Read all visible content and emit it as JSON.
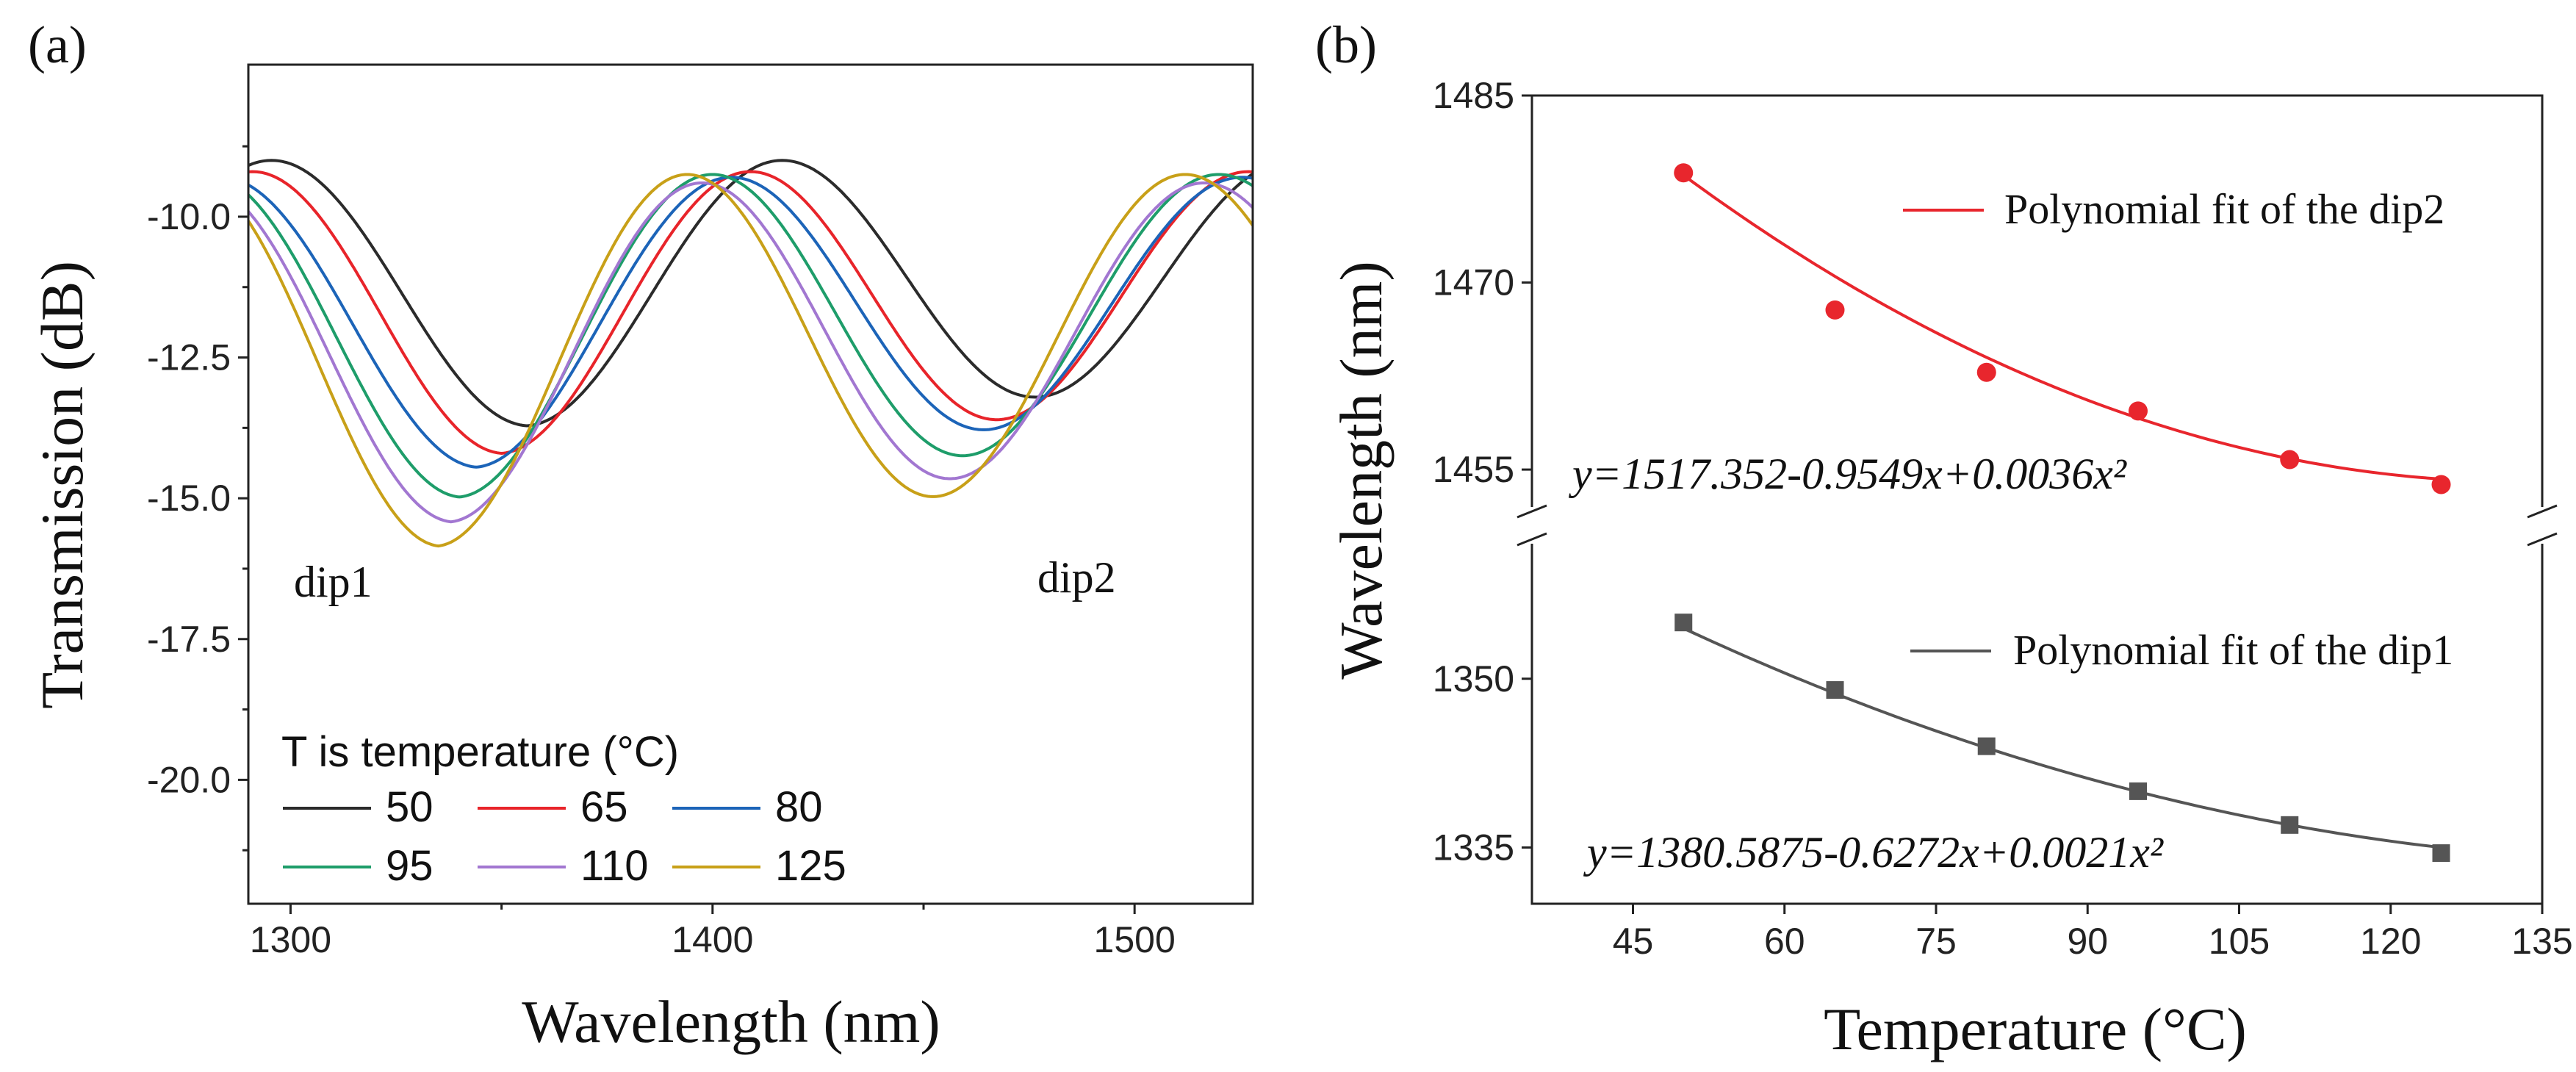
{
  "chart_data": [
    {
      "panel": "(a)",
      "type": "line",
      "xlabel": "Wavelength (nm)",
      "ylabel": "Transmission (dB)",
      "xlim": [
        1290,
        1528
      ],
      "ylim": [
        -22.2,
        -7.3
      ],
      "xticks": [
        "1300",
        "1400",
        "1500"
      ],
      "yticks": [
        "-10.0",
        "-12.5",
        "-15.0",
        "-17.5",
        "-20.0"
      ],
      "legend_title": "T is temperature (°C)",
      "annotations": [
        "dip1",
        "dip2"
      ],
      "series": [
        {
          "name": "50",
          "color": "#2b2b2b",
          "base": -9.35,
          "amp": 3.25,
          "decay": 0.0065,
          "dip1": 1356,
          "dip2": 1477,
          "period": 121
        },
        {
          "name": "65",
          "color": "#e8242a",
          "base": -9.55,
          "amp": 3.45,
          "decay": 0.0075,
          "dip1": 1350,
          "dip2": 1468,
          "period": 118
        },
        {
          "name": "80",
          "color": "#1c64b8",
          "base": -9.65,
          "amp": 3.55,
          "decay": 0.008,
          "dip1": 1344,
          "dip2": 1465,
          "period": 121
        },
        {
          "name": "95",
          "color": "#1e9d6a",
          "base": -9.6,
          "amp": 3.95,
          "decay": 0.008,
          "dip1": 1340,
          "dip2": 1460,
          "period": 120
        },
        {
          "name": "110",
          "color": "#a277d1",
          "base": -9.75,
          "amp": 4.15,
          "decay": 0.008,
          "dip1": 1338,
          "dip2": 1457,
          "period": 119
        },
        {
          "name": "125",
          "color": "#c8a018",
          "base": -9.6,
          "amp": 4.55,
          "decay": 0.0085,
          "dip1": 1335,
          "dip2": 1453,
          "period": 118
        }
      ]
    },
    {
      "panel": "(b)",
      "type": "scatter",
      "xlabel": "Temperature (°C)",
      "ylabel": "Wavelength (nm)",
      "xlim": [
        35,
        135
      ],
      "xticks": [
        "45",
        "60",
        "75",
        "90",
        "105",
        "120",
        "135"
      ],
      "upper_ylim": [
        1452,
        1485
      ],
      "upper_yticks": [
        "1455",
        "1470",
        "1485"
      ],
      "lower_ylim": [
        1330,
        1362
      ],
      "lower_yticks": [
        "1335",
        "1350"
      ],
      "series": [
        {
          "name": "dip2",
          "fit_label": "Polynomial fit of the dip2",
          "equation": "y=1517.352-0.9549x+0.0036x²",
          "coeffs": [
            1517.352,
            -0.9549,
            0.0036
          ],
          "color": "#e8262d",
          "marker": "circle",
          "x": [
            50,
            65,
            80,
            95,
            110,
            125
          ],
          "y": [
            1478.8,
            1467.8,
            1462.8,
            1459.7,
            1455.8,
            1453.8
          ]
        },
        {
          "name": "dip1",
          "fit_label": "Polynomial fit of the dip1",
          "equation": "y=1380.5875-0.6272x+0.0021x²",
          "coeffs": [
            1380.5875,
            -0.6272,
            0.0021
          ],
          "color": "#555555",
          "marker": "square",
          "x": [
            50,
            65,
            80,
            95,
            110,
            125
          ],
          "y": [
            1355.0,
            1349.0,
            1344.0,
            1340.0,
            1337.0,
            1334.5
          ]
        }
      ]
    }
  ]
}
